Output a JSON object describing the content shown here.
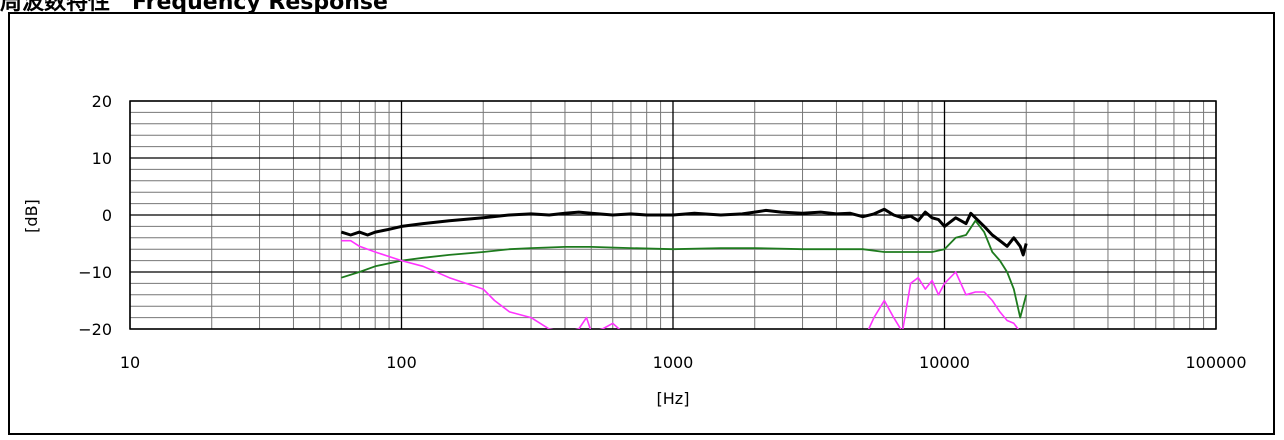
{
  "title": "周波数特性　Frequency Response",
  "chart_data": {
    "type": "line",
    "title": "周波数特性　Frequency Response",
    "xlabel": "[Hz]",
    "ylabel": "[dB]",
    "xscale": "log",
    "xlim": [
      10,
      100000
    ],
    "ylim": [
      -20,
      20
    ],
    "x_ticks": [
      "10",
      "100",
      "1000",
      "10000",
      "100000"
    ],
    "y_ticks": [
      "20",
      "10",
      "0",
      "-10",
      "-20"
    ],
    "grid": true,
    "legend": "none",
    "series": [
      {
        "color": "#000000",
        "x": [
          60,
          65,
          70,
          75,
          80,
          90,
          100,
          120,
          150,
          200,
          250,
          300,
          350,
          400,
          450,
          500,
          600,
          700,
          800,
          1000,
          1200,
          1500,
          1800,
          2000,
          2200,
          2500,
          3000,
          3500,
          4000,
          4500,
          5000,
          5500,
          6000,
          6500,
          7000,
          7500,
          8000,
          8500,
          9000,
          9500,
          10000,
          11000,
          12000,
          12500,
          13000,
          14000,
          15000,
          16000,
          17000,
          18000,
          19000,
          19500,
          20000
        ],
        "y": [
          -3,
          -3.5,
          -3,
          -3.5,
          -3,
          -2.5,
          -2,
          -1.5,
          -1,
          -0.5,
          0,
          0.2,
          0,
          0.3,
          0.5,
          0.3,
          0,
          0.2,
          0,
          0,
          0.3,
          0,
          0.2,
          0.5,
          0.8,
          0.5,
          0.3,
          0.5,
          0.2,
          0.3,
          -0.3,
          0.2,
          1,
          0,
          -0.5,
          -0.2,
          -1,
          0.5,
          -0.5,
          -0.8,
          -2,
          -0.5,
          -1.5,
          0.3,
          -0.5,
          -2,
          -3.5,
          -4.5,
          -5.5,
          -4,
          -5.5,
          -7,
          -5
        ]
      },
      {
        "color": "#1e7b1e",
        "x": [
          60,
          70,
          80,
          100,
          120,
          150,
          200,
          250,
          300,
          400,
          500,
          700,
          1000,
          1500,
          2000,
          3000,
          4000,
          5000,
          6000,
          7000,
          8000,
          9000,
          10000,
          11000,
          12000,
          13000,
          14000,
          15000,
          16000,
          17000,
          18000,
          19000,
          20000
        ],
        "y": [
          -11,
          -10,
          -9,
          -8,
          -7.5,
          -7,
          -6.5,
          -6,
          -5.8,
          -5.6,
          -5.6,
          -5.8,
          -6,
          -5.8,
          -5.8,
          -6,
          -6,
          -6,
          -6.5,
          -6.5,
          -6.5,
          -6.5,
          -6,
          -4,
          -3.5,
          -1,
          -3,
          -6.5,
          -8,
          -10,
          -13,
          -18,
          -14
        ]
      },
      {
        "color": "#ff33ff",
        "x": [
          60,
          65,
          70,
          80,
          100,
          120,
          150,
          200,
          220,
          250,
          300,
          350,
          400,
          450,
          480,
          500,
          550,
          600,
          650,
          5200,
          5500,
          6000,
          6500,
          7000,
          7500,
          8000,
          8500,
          9000,
          9500,
          10000,
          11000,
          12000,
          13000,
          14000,
          15000,
          16000,
          17000,
          18000,
          19000
        ],
        "y": [
          -4.5,
          -4.5,
          -5.5,
          -6.5,
          -8,
          -9,
          -11,
          -13,
          -15,
          -17,
          -18,
          -20,
          -20.5,
          -20,
          -18,
          -20.5,
          -20,
          -19,
          -20.5,
          -20.5,
          -18,
          -15,
          -18,
          -20.5,
          -12,
          -11,
          -13,
          -11.5,
          -14,
          -12,
          -10,
          -14,
          -13.5,
          -13.5,
          -15,
          -17,
          -18.5,
          -19,
          -20.5
        ]
      }
    ]
  }
}
